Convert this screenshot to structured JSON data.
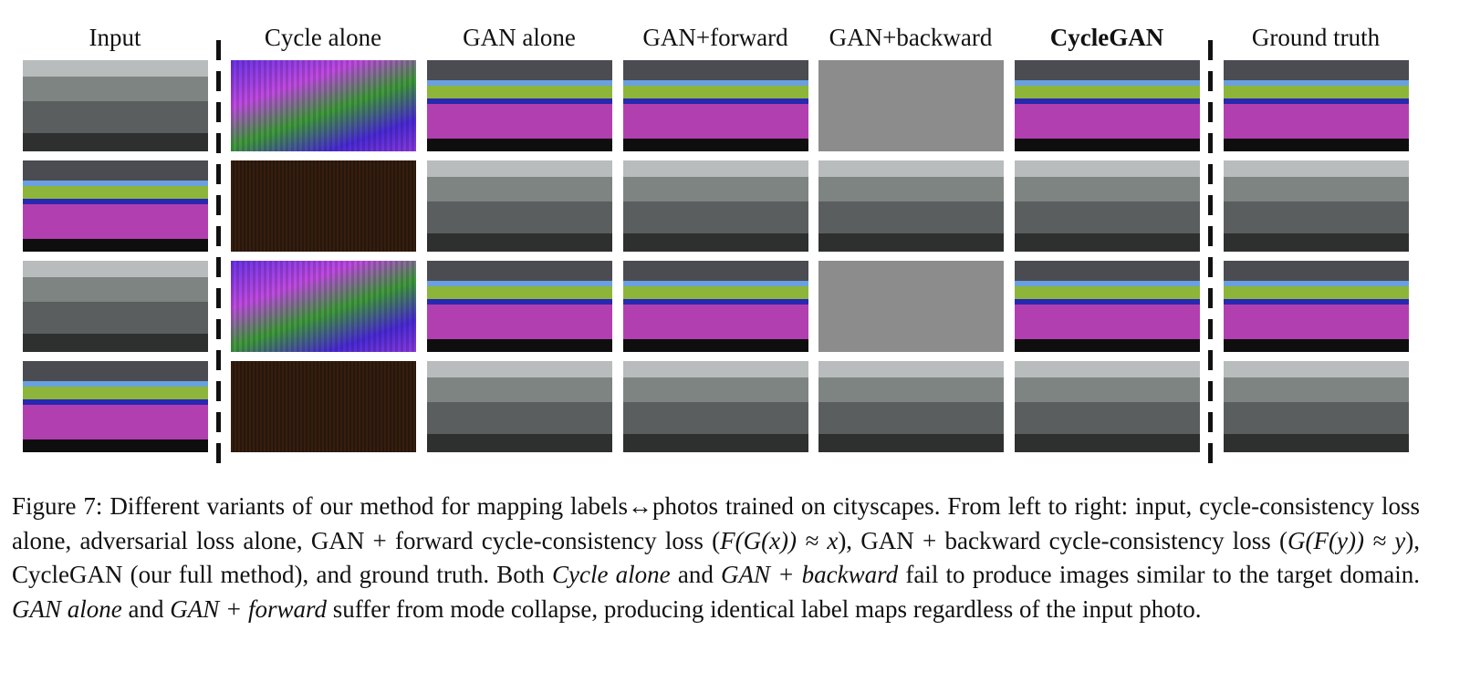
{
  "figure": {
    "columns": [
      "Input",
      "Cycle alone",
      "GAN alone",
      "GAN+forward",
      "GAN+backward",
      "CycleGAN",
      "Ground truth"
    ],
    "caption": [
      {
        "text": "Figure 7: Different variants of our method for mapping labels↔photos trained on cityscapes. From left to right: input, cycle-consistency loss alone, adversarial loss alone, GAN + forward cycle-consistency loss ("
      },
      {
        "text": "F(G(x)) ≈ x",
        "italic": true
      },
      {
        "text": "), GAN + backward cycle-consistency loss ("
      },
      {
        "text": "G(F(y)) ≈ y",
        "italic": true
      },
      {
        "text": "), CycleGAN (our full method), and ground truth.  Both "
      },
      {
        "text": "Cycle alone",
        "italic": true
      },
      {
        "text": " and "
      },
      {
        "text": "GAN + backward",
        "italic": true
      },
      {
        "text": " fail to produce images similar to the target domain. "
      },
      {
        "text": "GAN alone",
        "italic": true
      },
      {
        "text": " and "
      },
      {
        "text": "GAN + forward",
        "italic": true
      },
      {
        "text": " suffer from mode collapse, producing identical label maps regardless of the input photo."
      }
    ]
  }
}
